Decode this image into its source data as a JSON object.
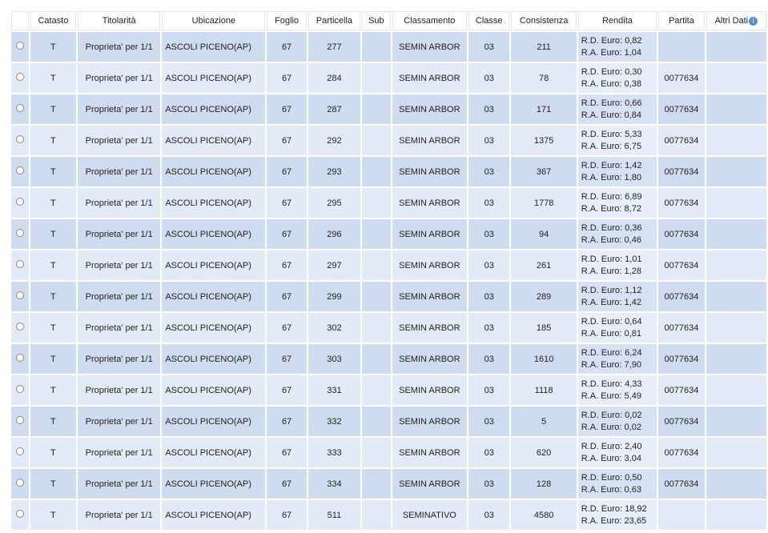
{
  "table": {
    "headers": [
      "",
      "Catasto",
      "Titolarità",
      "Ubicazione",
      "Foglio",
      "Particella",
      "Sub",
      "Classamento",
      "Classe",
      "Consistenza",
      "Rendita",
      "Partita",
      "Altri Dati"
    ],
    "info_icon": "info-icon",
    "rows": [
      {
        "catasto": "T",
        "titolarita": "Proprieta' per 1/1",
        "ubicazione": "ASCOLI PICENO(AP)",
        "foglio": "67",
        "particella": "277",
        "sub": "",
        "classamento": "SEMIN ARBOR",
        "classe": "03",
        "consistenza": "211",
        "rd": "R.D. Euro: 0,82",
        "ra": "R.A. Euro: 1,04",
        "partita": "",
        "altri": ""
      },
      {
        "catasto": "T",
        "titolarita": "Proprieta' per 1/1",
        "ubicazione": "ASCOLI PICENO(AP)",
        "foglio": "67",
        "particella": "284",
        "sub": "",
        "classamento": "SEMIN ARBOR",
        "classe": "03",
        "consistenza": "78",
        "rd": "R.D. Euro: 0,30",
        "ra": "R.A. Euro: 0,38",
        "partita": "0077634",
        "altri": ""
      },
      {
        "catasto": "T",
        "titolarita": "Proprieta' per 1/1",
        "ubicazione": "ASCOLI PICENO(AP)",
        "foglio": "67",
        "particella": "287",
        "sub": "",
        "classamento": "SEMIN ARBOR",
        "classe": "03",
        "consistenza": "171",
        "rd": "R.D. Euro: 0,66",
        "ra": "R.A. Euro: 0,84",
        "partita": "0077634",
        "altri": ""
      },
      {
        "catasto": "T",
        "titolarita": "Proprieta' per 1/1",
        "ubicazione": "ASCOLI PICENO(AP)",
        "foglio": "67",
        "particella": "292",
        "sub": "",
        "classamento": "SEMIN ARBOR",
        "classe": "03",
        "consistenza": "1375",
        "rd": "R.D. Euro: 5,33",
        "ra": "R.A. Euro: 6,75",
        "partita": "0077634",
        "altri": ""
      },
      {
        "catasto": "T",
        "titolarita": "Proprieta' per 1/1",
        "ubicazione": "ASCOLI PICENO(AP)",
        "foglio": "67",
        "particella": "293",
        "sub": "",
        "classamento": "SEMIN ARBOR",
        "classe": "03",
        "consistenza": "367",
        "rd": "R.D. Euro: 1,42",
        "ra": "R.A. Euro: 1,80",
        "partita": "0077634",
        "altri": ""
      },
      {
        "catasto": "T",
        "titolarita": "Proprieta' per 1/1",
        "ubicazione": "ASCOLI PICENO(AP)",
        "foglio": "67",
        "particella": "295",
        "sub": "",
        "classamento": "SEMIN ARBOR",
        "classe": "03",
        "consistenza": "1778",
        "rd": "R.D. Euro: 6,89",
        "ra": "R.A. Euro: 8,72",
        "partita": "0077634",
        "altri": ""
      },
      {
        "catasto": "T",
        "titolarita": "Proprieta' per 1/1",
        "ubicazione": "ASCOLI PICENO(AP)",
        "foglio": "67",
        "particella": "296",
        "sub": "",
        "classamento": "SEMIN ARBOR",
        "classe": "03",
        "consistenza": "94",
        "rd": "R.D. Euro: 0,36",
        "ra": "R.A. Euro: 0,46",
        "partita": "0077634",
        "altri": ""
      },
      {
        "catasto": "T",
        "titolarita": "Proprieta' per 1/1",
        "ubicazione": "ASCOLI PICENO(AP)",
        "foglio": "67",
        "particella": "297",
        "sub": "",
        "classamento": "SEMIN ARBOR",
        "classe": "03",
        "consistenza": "261",
        "rd": "R.D. Euro: 1,01",
        "ra": "R.A. Euro: 1,28",
        "partita": "0077634",
        "altri": ""
      },
      {
        "catasto": "T",
        "titolarita": "Proprieta' per 1/1",
        "ubicazione": "ASCOLI PICENO(AP)",
        "foglio": "67",
        "particella": "299",
        "sub": "",
        "classamento": "SEMIN ARBOR",
        "classe": "03",
        "consistenza": "289",
        "rd": "R.D. Euro: 1,12",
        "ra": "R.A. Euro: 1,42",
        "partita": "0077634",
        "altri": ""
      },
      {
        "catasto": "T",
        "titolarita": "Proprieta' per 1/1",
        "ubicazione": "ASCOLI PICENO(AP)",
        "foglio": "67",
        "particella": "302",
        "sub": "",
        "classamento": "SEMIN ARBOR",
        "classe": "03",
        "consistenza": "185",
        "rd": "R.D. Euro: 0,64",
        "ra": "R.A. Euro: 0,81",
        "partita": "0077634",
        "altri": ""
      },
      {
        "catasto": "T",
        "titolarita": "Proprieta' per 1/1",
        "ubicazione": "ASCOLI PICENO(AP)",
        "foglio": "67",
        "particella": "303",
        "sub": "",
        "classamento": "SEMIN ARBOR",
        "classe": "03",
        "consistenza": "1610",
        "rd": "R.D. Euro: 6,24",
        "ra": "R.A. Euro: 7,90",
        "partita": "0077634",
        "altri": ""
      },
      {
        "catasto": "T",
        "titolarita": "Proprieta' per 1/1",
        "ubicazione": "ASCOLI PICENO(AP)",
        "foglio": "67",
        "particella": "331",
        "sub": "",
        "classamento": "SEMIN ARBOR",
        "classe": "03",
        "consistenza": "1118",
        "rd": "R.D. Euro: 4,33",
        "ra": "R.A. Euro: 5,49",
        "partita": "0077634",
        "altri": ""
      },
      {
        "catasto": "T",
        "titolarita": "Proprieta' per 1/1",
        "ubicazione": "ASCOLI PICENO(AP)",
        "foglio": "67",
        "particella": "332",
        "sub": "",
        "classamento": "SEMIN ARBOR",
        "classe": "03",
        "consistenza": "5",
        "rd": "R.D. Euro: 0,02",
        "ra": "R.A. Euro: 0,02",
        "partita": "0077634",
        "altri": ""
      },
      {
        "catasto": "T",
        "titolarita": "Proprieta' per 1/1",
        "ubicazione": "ASCOLI PICENO(AP)",
        "foglio": "67",
        "particella": "333",
        "sub": "",
        "classamento": "SEMIN ARBOR",
        "classe": "03",
        "consistenza": "620",
        "rd": "R.D. Euro: 2,40",
        "ra": "R.A. Euro: 3,04",
        "partita": "0077634",
        "altri": ""
      },
      {
        "catasto": "T",
        "titolarita": "Proprieta' per 1/1",
        "ubicazione": "ASCOLI PICENO(AP)",
        "foglio": "67",
        "particella": "334",
        "sub": "",
        "classamento": "SEMIN ARBOR",
        "classe": "03",
        "consistenza": "128",
        "rd": "R.D. Euro: 0,50",
        "ra": "R.A. Euro: 0,63",
        "partita": "0077634",
        "altri": ""
      },
      {
        "catasto": "T",
        "titolarita": "Proprieta' per 1/1",
        "ubicazione": "ASCOLI PICENO(AP)",
        "foglio": "67",
        "particella": "511",
        "sub": "",
        "classamento": "SEMINATIVO",
        "classe": "03",
        "consistenza": "4580",
        "rd": "R.D. Euro: 18,92",
        "ra": "R.A. Euro: 23,65",
        "partita": "",
        "altri": ""
      }
    ]
  }
}
